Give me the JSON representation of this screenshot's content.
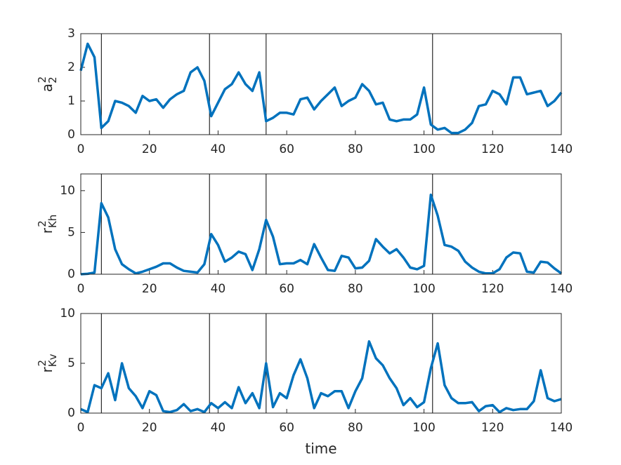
{
  "chart_data": [
    {
      "type": "line",
      "ylabel": "a",
      "ylabel_sub": "2",
      "ylabel_sup": "2",
      "xlim": [
        0,
        140
      ],
      "xticks": [
        0,
        20,
        40,
        60,
        80,
        100,
        120,
        140
      ],
      "ylim": [
        0,
        3
      ],
      "yticks": [
        0,
        1,
        2,
        3
      ],
      "vlines": [
        6,
        37.5,
        54,
        102.5
      ],
      "x": [
        0,
        2,
        4,
        6,
        8,
        10,
        12,
        14,
        16,
        18,
        20,
        22,
        24,
        26,
        28,
        30,
        32,
        34,
        36,
        38,
        40,
        42,
        44,
        46,
        48,
        50,
        52,
        54,
        56,
        58,
        60,
        62,
        64,
        66,
        68,
        70,
        72,
        74,
        76,
        78,
        80,
        82,
        84,
        86,
        88,
        90,
        92,
        94,
        96,
        98,
        100,
        102,
        104,
        106,
        108,
        110,
        112,
        114,
        116,
        118,
        120,
        122,
        124,
        126,
        128,
        130,
        132,
        134,
        136,
        138,
        140
      ],
      "series": [
        {
          "color": "#0072bd",
          "values": [
            1.9,
            2.7,
            2.3,
            0.2,
            0.4,
            1.0,
            0.95,
            0.85,
            0.65,
            1.15,
            1.0,
            1.05,
            0.8,
            1.05,
            1.2,
            1.3,
            1.85,
            2.0,
            1.6,
            0.55,
            0.95,
            1.35,
            1.5,
            1.85,
            1.5,
            1.3,
            1.85,
            0.4,
            0.5,
            0.65,
            0.65,
            0.6,
            1.05,
            1.1,
            0.75,
            1.0,
            1.2,
            1.4,
            0.85,
            1.0,
            1.1,
            1.5,
            1.3,
            0.9,
            0.95,
            0.45,
            0.4,
            0.45,
            0.45,
            0.6,
            1.4,
            0.3,
            0.15,
            0.2,
            0.05,
            0.05,
            0.15,
            0.35,
            0.85,
            0.9,
            1.3,
            1.2,
            0.9,
            1.7,
            1.7,
            1.2,
            1.25,
            1.3,
            0.85,
            1.0,
            1.25
          ]
        }
      ]
    },
    {
      "type": "line",
      "ylabel": "r",
      "ylabel_sub": "Kh",
      "ylabel_sup": "2",
      "xlim": [
        0,
        140
      ],
      "xticks": [
        0,
        20,
        40,
        60,
        80,
        100,
        120,
        140
      ],
      "ylim": [
        0,
        12
      ],
      "yticks": [
        0,
        5,
        10
      ],
      "vlines": [
        6,
        37.5,
        54,
        102.5
      ],
      "x": [
        0,
        2,
        4,
        6,
        8,
        10,
        12,
        14,
        16,
        18,
        20,
        22,
        24,
        26,
        28,
        30,
        32,
        34,
        36,
        38,
        40,
        42,
        44,
        46,
        48,
        50,
        52,
        54,
        56,
        58,
        60,
        62,
        64,
        66,
        68,
        70,
        72,
        74,
        76,
        78,
        80,
        82,
        84,
        86,
        88,
        90,
        92,
        94,
        96,
        98,
        100,
        102,
        104,
        106,
        108,
        110,
        112,
        114,
        116,
        118,
        120,
        122,
        124,
        126,
        128,
        130,
        132,
        134,
        136,
        138,
        140
      ],
      "series": [
        {
          "color": "#0072bd",
          "values": [
            0,
            0.05,
            0.2,
            8.5,
            6.8,
            3,
            1.2,
            0.6,
            0.1,
            0.3,
            0.6,
            0.9,
            1.3,
            1.3,
            0.8,
            0.4,
            0.3,
            0.2,
            1.2,
            4.8,
            3.5,
            1.5,
            2.0,
            2.7,
            2.4,
            0.5,
            3.0,
            6.5,
            4.5,
            1.2,
            1.3,
            1.3,
            1.7,
            1.2,
            3.6,
            2.0,
            0.5,
            0.4,
            2.2,
            2.0,
            0.7,
            0.8,
            1.6,
            4.2,
            3.3,
            2.5,
            3.0,
            2.0,
            0.8,
            0.6,
            1.0,
            9.5,
            7.0,
            3.5,
            3.3,
            2.8,
            1.5,
            0.8,
            0.3,
            0.1,
            0.1,
            0.6,
            2.0,
            2.6,
            2.5,
            0.3,
            0.2,
            1.5,
            1.4,
            0.7,
            0.1
          ]
        }
      ]
    },
    {
      "type": "line",
      "ylabel": "r",
      "ylabel_sub": "Kv",
      "ylabel_sup": "2",
      "xlabel": "time",
      "xlim": [
        0,
        140
      ],
      "xticks": [
        0,
        20,
        40,
        60,
        80,
        100,
        120,
        140
      ],
      "ylim": [
        0,
        10
      ],
      "yticks": [
        0,
        5,
        10
      ],
      "vlines": [
        6,
        37.5,
        54,
        102.5
      ],
      "x": [
        0,
        2,
        4,
        6,
        8,
        10,
        12,
        14,
        16,
        18,
        20,
        22,
        24,
        26,
        28,
        30,
        32,
        34,
        36,
        38,
        40,
        42,
        44,
        46,
        48,
        50,
        52,
        54,
        56,
        58,
        60,
        62,
        64,
        66,
        68,
        70,
        72,
        74,
        76,
        78,
        80,
        82,
        84,
        86,
        88,
        90,
        92,
        94,
        96,
        98,
        100,
        102,
        104,
        106,
        108,
        110,
        112,
        114,
        116,
        118,
        120,
        122,
        124,
        126,
        128,
        130,
        132,
        134,
        136,
        138,
        140
      ],
      "series": [
        {
          "color": "#0072bd",
          "values": [
            0.4,
            0.1,
            2.8,
            2.5,
            4.0,
            1.3,
            5.0,
            2.5,
            1.7,
            0.5,
            2.2,
            1.8,
            0.2,
            0.1,
            0.3,
            0.9,
            0.2,
            0.4,
            0.1,
            1.0,
            0.5,
            1.1,
            0.5,
            2.6,
            1.0,
            2.0,
            0.5,
            5.0,
            0.6,
            2.0,
            1.5,
            3.8,
            5.4,
            3.5,
            0.5,
            2.0,
            1.7,
            2.2,
            2.2,
            0.5,
            2.2,
            3.5,
            7.2,
            5.5,
            4.8,
            3.5,
            2.5,
            0.8,
            1.5,
            0.6,
            1.1,
            4.5,
            7.0,
            2.8,
            1.5,
            1.0,
            1.0,
            1.1,
            0.2,
            0.7,
            0.8,
            0.1,
            0.5,
            0.3,
            0.4,
            0.4,
            1.2,
            4.3,
            1.5,
            1.2,
            1.4
          ]
        }
      ]
    }
  ]
}
